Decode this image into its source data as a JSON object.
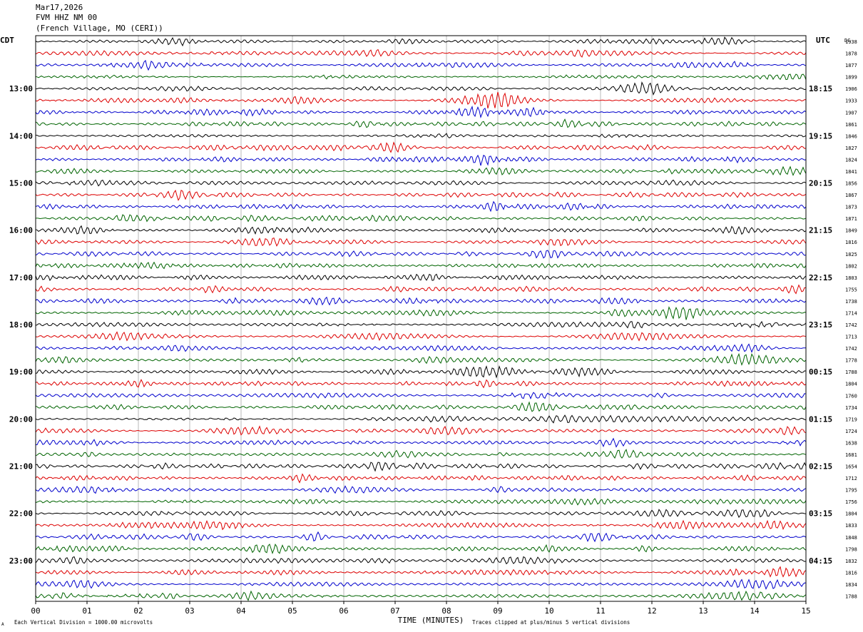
{
  "header": {
    "date": "Mar17,2026",
    "station": "FVM HHZ NM 00",
    "location": "(French Village, MO (CERI))"
  },
  "labels": {
    "left_tz": "CDT",
    "right_tz": "UTC",
    "right_col": "DC",
    "xlabel": "TIME (MINUTES)",
    "footer_left": "Each Vertical Division = 1000.00 microvolts",
    "footer_right": "Traces clipped at plus/minus 5 vertical divisions",
    "corner_mark": "A"
  },
  "chart_data": {
    "type": "line",
    "title": "FVM HHZ NM 00 (French Village, MO (CERI)) Mar17,2026",
    "xlabel": "TIME (MINUTES)",
    "xlim": [
      0,
      15
    ],
    "x_ticks": [
      "00",
      "01",
      "02",
      "03",
      "04",
      "05",
      "06",
      "07",
      "08",
      "09",
      "10",
      "11",
      "12",
      "13",
      "14",
      "15"
    ],
    "trace_colors": [
      "#000000",
      "#dd0000",
      "#0000cc",
      "#006400"
    ],
    "grid": true,
    "left_hour_labels": [
      {
        "row": 4,
        "label": "13:00"
      },
      {
        "row": 8,
        "label": "14:00"
      },
      {
        "row": 12,
        "label": "15:00"
      },
      {
        "row": 16,
        "label": "16:00"
      },
      {
        "row": 20,
        "label": "17:00"
      },
      {
        "row": 24,
        "label": "18:00"
      },
      {
        "row": 28,
        "label": "19:00"
      },
      {
        "row": 32,
        "label": "20:00"
      },
      {
        "row": 36,
        "label": "21:00"
      },
      {
        "row": 40,
        "label": "22:00"
      },
      {
        "row": 44,
        "label": "23:00"
      }
    ],
    "right_hour_labels": [
      {
        "row": 4,
        "label": "18:15"
      },
      {
        "row": 8,
        "label": "19:15"
      },
      {
        "row": 12,
        "label": "20:15"
      },
      {
        "row": 16,
        "label": "21:15"
      },
      {
        "row": 20,
        "label": "22:15"
      },
      {
        "row": 24,
        "label": "23:15"
      },
      {
        "row": 28,
        "label": "00:15"
      },
      {
        "row": 32,
        "label": "01:15"
      },
      {
        "row": 36,
        "label": "02:15"
      },
      {
        "row": 40,
        "label": "03:15"
      },
      {
        "row": 44,
        "label": "04:15"
      }
    ],
    "dc_offsets": [
      "1938",
      "1878",
      "1877",
      "1899",
      "1906",
      "1933",
      "1907",
      "1861",
      "1846",
      "1827",
      "1824",
      "1841",
      "1856",
      "1867",
      "1873",
      "1871",
      "1849",
      "1816",
      "1825",
      "1802",
      "1803",
      "1755",
      "1738",
      "1714",
      "1742",
      "1713",
      "1742",
      "1778",
      "1788",
      "1804",
      "1760",
      "1734",
      "1719",
      "1724",
      "1638",
      "1681",
      "1654",
      "1712",
      "1795",
      "1756",
      "1804",
      "1833",
      "1848",
      "1798",
      "1832",
      "1816",
      "1834",
      "1788"
    ]
  }
}
